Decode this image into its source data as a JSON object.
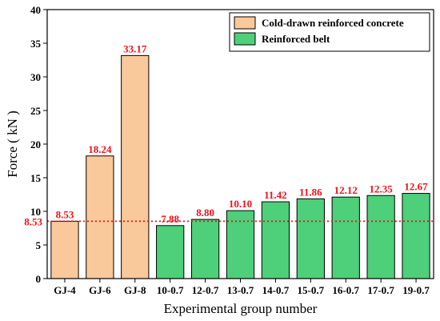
{
  "chart_data": {
    "type": "bar",
    "categories": [
      "GJ-4",
      "GJ-6",
      "GJ-8",
      "10-0.7",
      "12-0.7",
      "13-0.7",
      "14-0.7",
      "15-0.7",
      "16-0.7",
      "17-0.7",
      "19-0.7"
    ],
    "values": [
      8.53,
      18.24,
      33.17,
      7.88,
      8.8,
      10.1,
      11.42,
      11.86,
      12.12,
      12.35,
      12.67
    ],
    "value_labels": [
      "8.53",
      "18.24",
      "33.17",
      "7.88",
      "8.80",
      "10.10",
      "11.42",
      "11.86",
      "12.12",
      "12.35",
      "12.67"
    ],
    "series_index": [
      0,
      0,
      0,
      1,
      1,
      1,
      1,
      1,
      1,
      1,
      1
    ],
    "series": [
      {
        "name": "Cold-drawn reinforced concrete",
        "color": "#f9c89b"
      },
      {
        "name": "Reinforced belt",
        "color": "#4ecf7a"
      }
    ],
    "xlabel": "Experimental group number",
    "ylabel": "Force ( kN )",
    "ylim": [
      0,
      40
    ],
    "yticks": [
      "0",
      "5",
      "10",
      "15",
      "20",
      "25",
      "30",
      "35",
      "40"
    ],
    "reference_line": {
      "value": 8.53,
      "label": "8.53",
      "color": "#e8141e",
      "style": "dotted"
    },
    "label_color": "#e8141e",
    "grid": false,
    "legend_position": "top-right"
  }
}
